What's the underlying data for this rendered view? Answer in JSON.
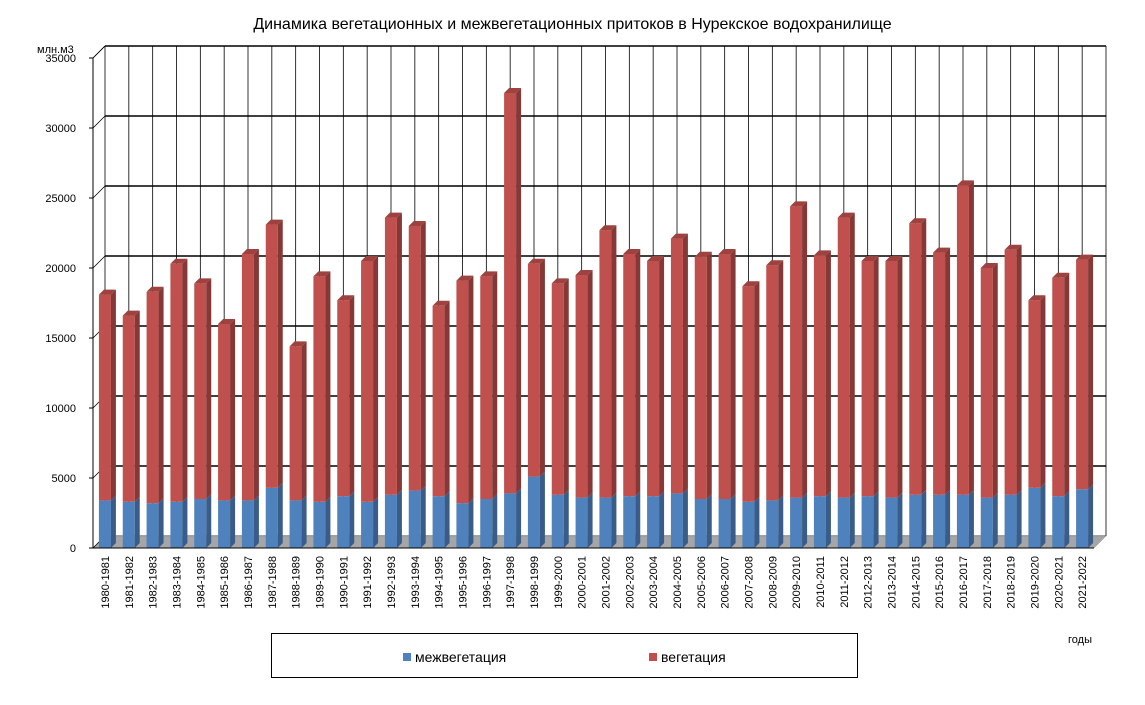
{
  "chart_data": {
    "type": "bar",
    "stacked": true,
    "title": "Динамика вегетационных и межвегетационных притоков в Нурекское водохранилище",
    "ylabel": "млн.м3",
    "xlabel": "годы",
    "ylim": [
      0,
      35000
    ],
    "yticks": [
      0,
      5000,
      10000,
      15000,
      20000,
      25000,
      30000,
      35000
    ],
    "grid": true,
    "legend_position": "bottom",
    "categories": [
      "1980-1981",
      "1981-1982",
      "1982-1983",
      "1983-1984",
      "1984-1985",
      "1985-1986",
      "1986-1987",
      "1987-1988",
      "1988-1989",
      "1989-1990",
      "1990-1991",
      "1991-1992",
      "1992-1993",
      "1993-1994",
      "1994-1995",
      "1995-1996",
      "1996-1997",
      "1997-1998",
      "1998-1999",
      "1999-2000",
      "2000-2001",
      "2001-2002",
      "2002-2003",
      "2003-2004",
      "2004-2005",
      "2005-2006",
      "2006-2007",
      "2007-2008",
      "2008-2009",
      "2009-2010",
      "2010-2011",
      "2011-2012",
      "2012-2013",
      "2013-2014",
      "2014-2015",
      "2015-2016",
      "2016-2017",
      "2017-2018",
      "2018-2019",
      "2019-2020",
      "2020-2021",
      "2021-2022"
    ],
    "series": [
      {
        "name": "межвегетация",
        "color": "#4F81BD",
        "values": [
          3400,
          3300,
          3200,
          3300,
          3500,
          3400,
          3400,
          4300,
          3400,
          3300,
          3700,
          3300,
          3800,
          4100,
          3700,
          3200,
          3500,
          3900,
          5100,
          3800,
          3600,
          3600,
          3700,
          3700,
          3900,
          3500,
          3500,
          3300,
          3400,
          3600,
          3700,
          3600,
          3700,
          3600,
          3800,
          3800,
          3800,
          3600,
          3800,
          4300,
          3700,
          4200
        ]
      },
      {
        "name": "вегетация",
        "color": "#C0504D",
        "values": [
          14700,
          13300,
          15100,
          17000,
          15400,
          12600,
          17600,
          18800,
          11000,
          16100,
          14000,
          17200,
          19800,
          18900,
          13600,
          15900,
          15900,
          28600,
          15200,
          15100,
          15900,
          19100,
          17300,
          16800,
          18200,
          17300,
          17500,
          15400,
          16800,
          20800,
          17200,
          20000,
          16800,
          16900,
          19400,
          17300,
          22100,
          16400,
          17500,
          13400,
          15600,
          16400
        ]
      }
    ]
  }
}
